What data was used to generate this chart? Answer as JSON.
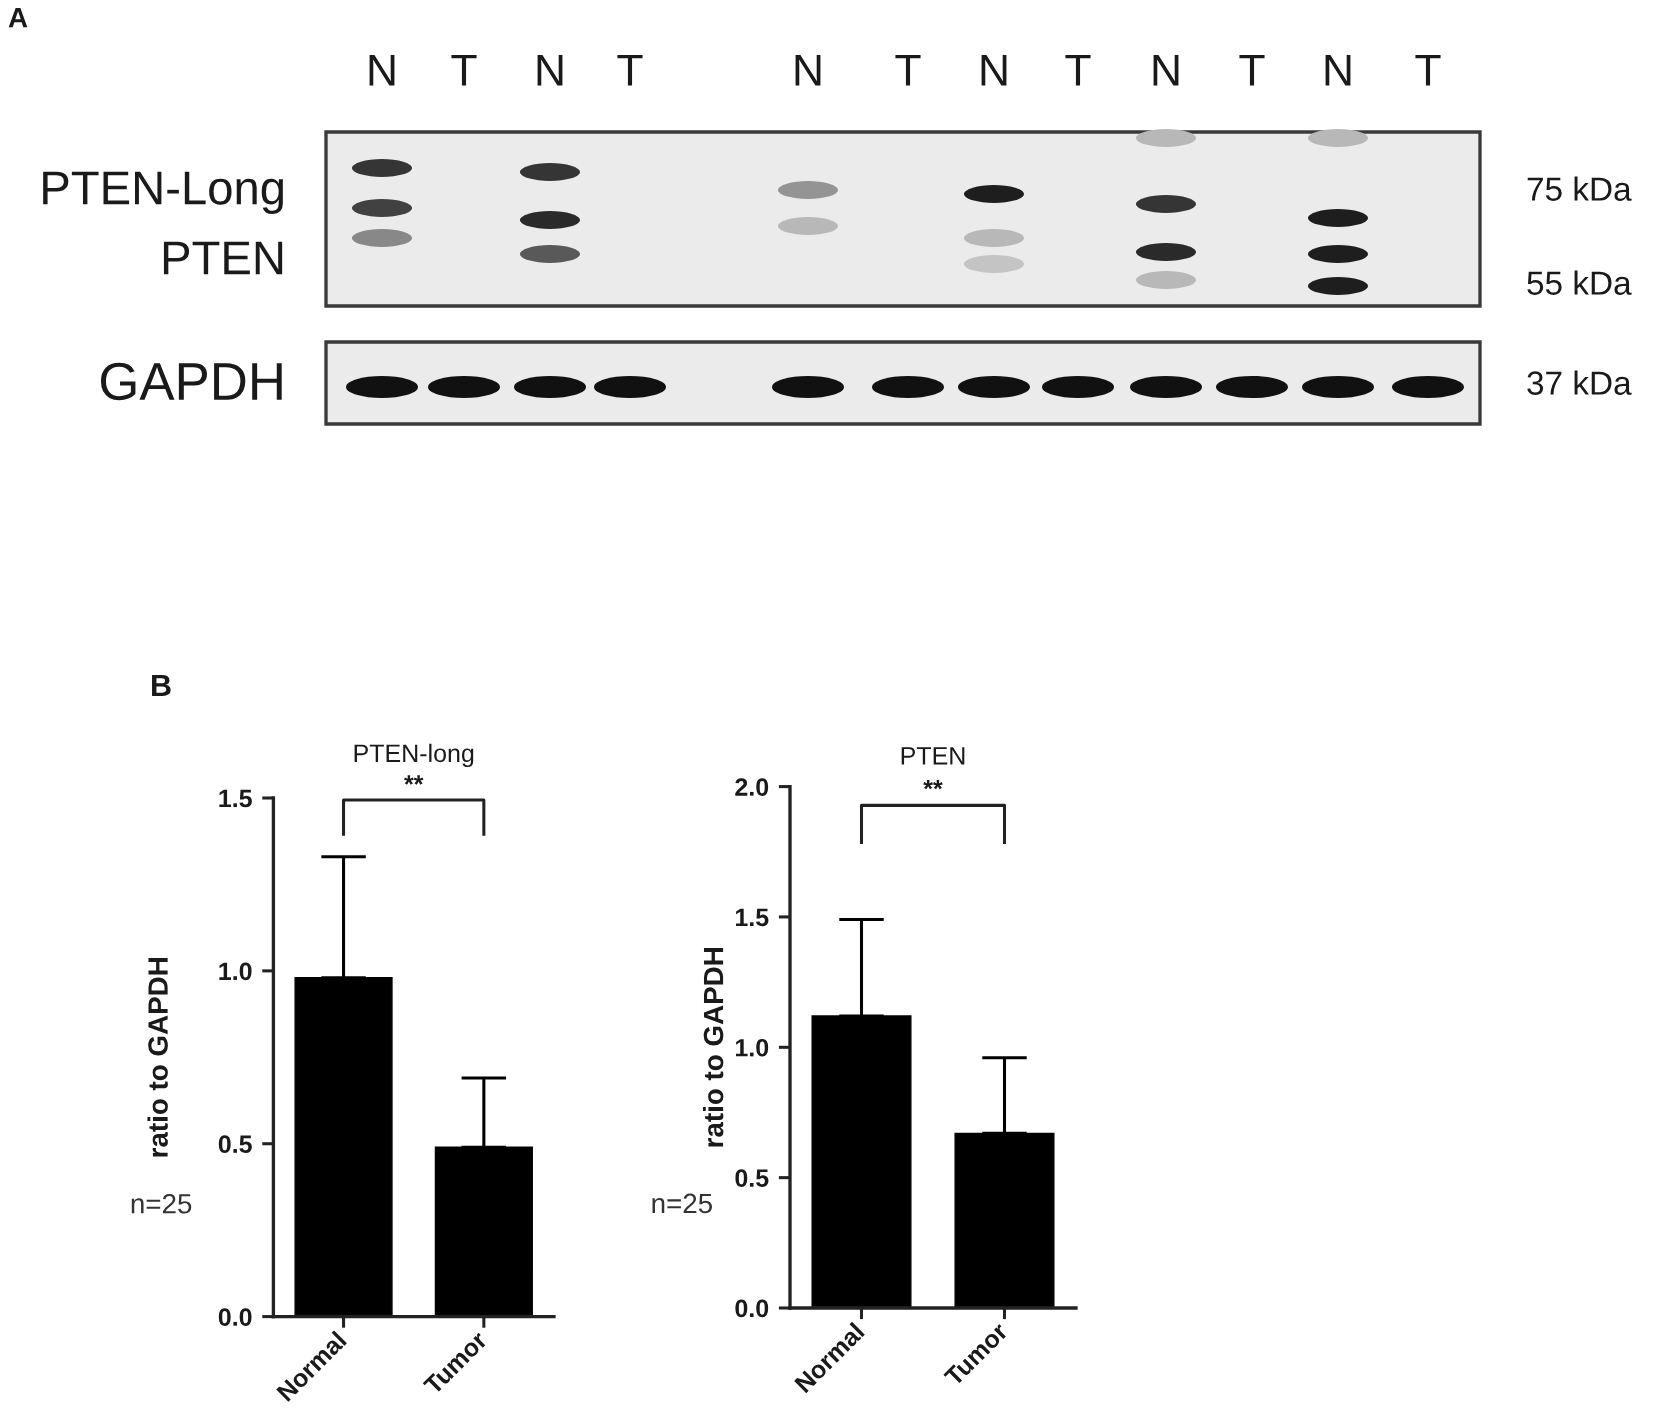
{
  "chart_data": [
    {
      "type": "other",
      "annotations": [
        "A"
      ],
      "categories": [
        "N",
        "T",
        "N",
        "T",
        "N",
        "T",
        "N",
        "T",
        "N",
        "T",
        "N",
        "T"
      ],
      "y_categories": [
        "PTEN-Long",
        "PTEN",
        "GAPDH"
      ],
      "y2_categories": [
        "75 kDa",
        "55 kDa",
        "37 kDa"
      ]
    },
    {
      "type": "bar",
      "title": "PTEN-long",
      "ylabel": "ratio to GAPDH",
      "categories": [
        "Normal",
        "Tumor"
      ],
      "values": [
        0.98,
        0.49
      ],
      "errors": [
        [
          0.98,
          1.33
        ],
        [
          0.49,
          0.69
        ]
      ],
      "color": "#000000",
      "ylim": [
        0,
        1.5
      ],
      "yticks": [
        {
          "value": 0,
          "label": "0.0"
        },
        {
          "value": 0.5,
          "label": "0.5"
        },
        {
          "value": 1,
          "label": "1.0"
        },
        {
          "value": 1.5,
          "label": "1.5"
        }
      ],
      "annotations": [
        "B",
        "**",
        "n=25"
      ]
    },
    {
      "type": "bar",
      "title": "PTEN",
      "ylabel": "ratio to GAPDH",
      "categories": [
        "Normal",
        "Tumor"
      ],
      "values": [
        1.12,
        0.67
      ],
      "errors": [
        [
          1.12,
          1.49
        ],
        [
          0.67,
          0.96
        ]
      ],
      "color": "#000000",
      "ylim": [
        0,
        2
      ],
      "yticks": [
        {
          "value": 0,
          "label": "0.0"
        },
        {
          "value": 0.5,
          "label": "0.5"
        },
        {
          "value": 1,
          "label": "1.0"
        },
        {
          "value": 1.5,
          "label": "1.5"
        },
        {
          "value": 2,
          "label": "2.0"
        }
      ],
      "annotations": [
        "**",
        "n=25"
      ]
    }
  ]
}
